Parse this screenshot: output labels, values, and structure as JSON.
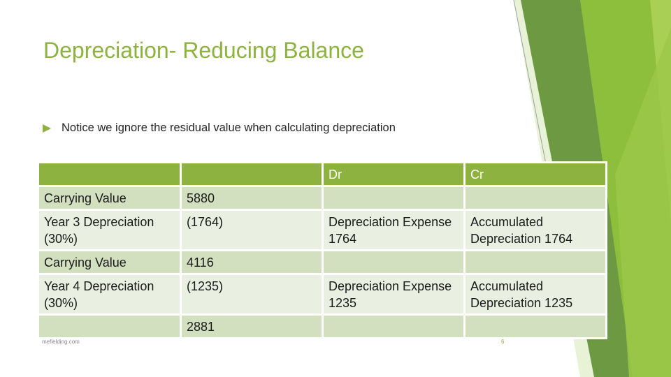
{
  "slide": {
    "title": "Depreciation- Reducing Balance",
    "bullet": "Notice we ignore the residual value when calculating depreciation"
  },
  "table": {
    "headers": [
      "",
      "",
      "Dr",
      "Cr"
    ],
    "rows": [
      [
        "Carrying Value",
        "5880",
        "",
        ""
      ],
      [
        "Year 3 Depreciation (30%)",
        "(1764)",
        "Depreciation Expense 1764",
        "Accumulated Depreciation 1764"
      ],
      [
        "Carrying Value",
        "4116",
        "",
        ""
      ],
      [
        "Year 4 Depreciation (30%)",
        "(1235)",
        "Depreciation Expense 1235",
        "Accumulated Depreciation 1235"
      ],
      [
        "",
        "2881",
        "",
        ""
      ]
    ]
  },
  "footer": {
    "source": "mefielding.com",
    "page_number": "6"
  },
  "colors": {
    "accent": "#8DB23F",
    "row_dark": "#D2E0C0",
    "row_light": "#E9F0E1",
    "deco_dark": "#5E8F32",
    "deco_light": "#A9CF54"
  }
}
